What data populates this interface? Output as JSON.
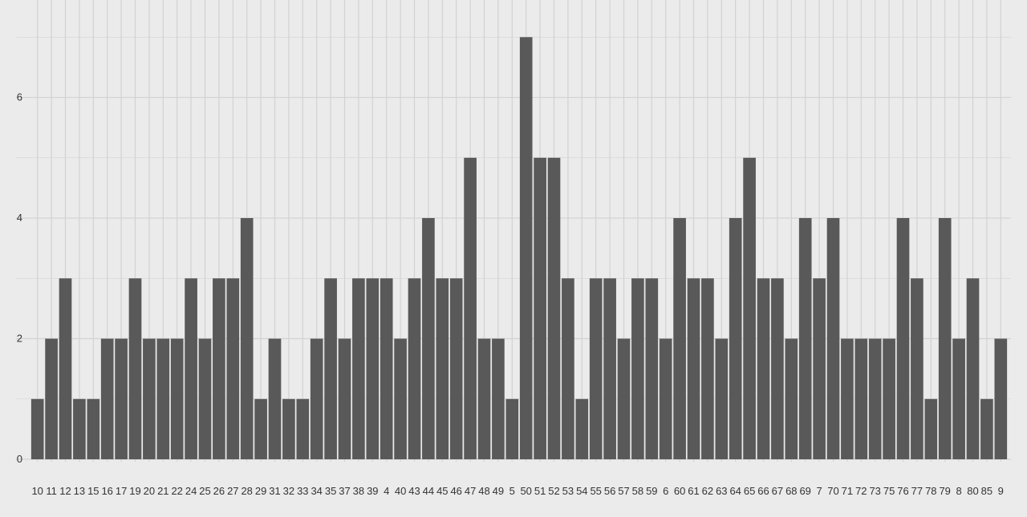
{
  "chart_data": {
    "type": "bar",
    "categories": [
      "10",
      "11",
      "12",
      "13",
      "15",
      "16",
      "17",
      "19",
      "20",
      "21",
      "22",
      "24",
      "25",
      "26",
      "27",
      "28",
      "29",
      "31",
      "32",
      "33",
      "34",
      "35",
      "37",
      "38",
      "39",
      "4",
      "40",
      "43",
      "44",
      "45",
      "46",
      "47",
      "48",
      "49",
      "5",
      "50",
      "51",
      "52",
      "53",
      "54",
      "55",
      "56",
      "57",
      "58",
      "59",
      "6",
      "60",
      "61",
      "62",
      "63",
      "64",
      "65",
      "66",
      "67",
      "68",
      "69",
      "7",
      "70",
      "71",
      "72",
      "73",
      "75",
      "76",
      "77",
      "78",
      "79",
      "8",
      "80",
      "85",
      "9"
    ],
    "values": [
      1,
      2,
      3,
      1,
      1,
      2,
      2,
      3,
      2,
      2,
      2,
      3,
      2,
      3,
      3,
      4,
      1,
      2,
      1,
      1,
      2,
      3,
      2,
      3,
      3,
      3,
      2,
      3,
      4,
      3,
      3,
      5,
      2,
      2,
      1,
      7,
      5,
      5,
      3,
      1,
      3,
      3,
      2,
      3,
      3,
      2,
      4,
      3,
      3,
      2,
      4,
      5,
      3,
      3,
      2,
      4,
      3,
      4,
      2,
      2,
      2,
      2,
      4,
      3,
      1,
      4,
      2,
      3,
      1,
      2
    ],
    "title": "",
    "xlabel": "",
    "ylabel": "",
    "ylim": [
      0,
      7.35
    ],
    "yticks": [
      0,
      2,
      4,
      6
    ],
    "grid": true,
    "colors": {
      "bar": "#595959",
      "panel_background": "#ebebeb",
      "grid": "#d2d2d2",
      "tick_text": "#333333"
    }
  }
}
